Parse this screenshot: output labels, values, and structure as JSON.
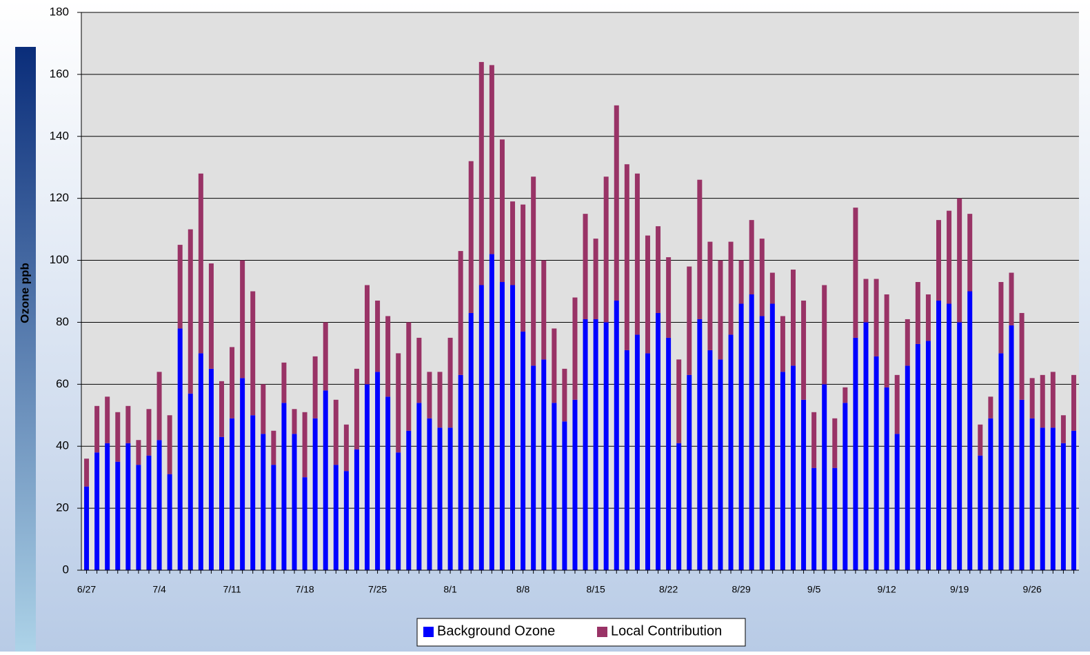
{
  "chart_data": {
    "type": "stacked-bar",
    "y_label": "Ozone ppb",
    "categories": [
      "6/27",
      null,
      null,
      null,
      null,
      null,
      null,
      "7/4",
      null,
      null,
      null,
      null,
      null,
      null,
      "7/11",
      null,
      null,
      null,
      null,
      null,
      null,
      "7/18",
      null,
      null,
      null,
      null,
      null,
      null,
      "7/25",
      null,
      null,
      null,
      null,
      null,
      null,
      "8/1",
      null,
      null,
      null,
      null,
      null,
      null,
      "8/8",
      null,
      null,
      null,
      null,
      null,
      null,
      "8/15",
      null,
      null,
      null,
      null,
      null,
      null,
      "8/22",
      null,
      null,
      null,
      null,
      null,
      null,
      "8/29",
      null,
      null,
      null,
      null,
      null,
      null,
      "9/5",
      null,
      null,
      null,
      null,
      null,
      null,
      "9/12",
      null,
      null,
      null,
      null,
      null,
      null,
      "9/19",
      null,
      null,
      null,
      null,
      null,
      null,
      "9/26",
      null,
      null,
      null,
      null
    ],
    "series": [
      {
        "name": "Background Ozone",
        "color": "#0000ff",
        "values": [
          27,
          38,
          41,
          35,
          41,
          34,
          37,
          42,
          31,
          78,
          57,
          70,
          65,
          43,
          49,
          62,
          50,
          44,
          34,
          54,
          44,
          30,
          49,
          58,
          34,
          32,
          39,
          60,
          64,
          56,
          38,
          45,
          54,
          49,
          46,
          46,
          63,
          83,
          92,
          102,
          93,
          92,
          77,
          66,
          68,
          54,
          48,
          55,
          81,
          81,
          80,
          87,
          71,
          76,
          70,
          83,
          75,
          41,
          63,
          81,
          71,
          68,
          76,
          86,
          89,
          82,
          86,
          64,
          66,
          55,
          33,
          60,
          33,
          54,
          75,
          80,
          69,
          59,
          44,
          66,
          73,
          74,
          87,
          86,
          80,
          90,
          37,
          49,
          70,
          79,
          55,
          49,
          46,
          46,
          41,
          45
        ]
      },
      {
        "name": "Local Contribution",
        "color": "#993366",
        "values": [
          9,
          15,
          15,
          16,
          12,
          8,
          15,
          22,
          19,
          27,
          53,
          58,
          34,
          18,
          23,
          38,
          40,
          16,
          11,
          13,
          8,
          21,
          20,
          22,
          21,
          15,
          26,
          32,
          23,
          26,
          32,
          35,
          21,
          15,
          18,
          29,
          40,
          49,
          72,
          61,
          46,
          27,
          41,
          61,
          32,
          24,
          17,
          33,
          34,
          26,
          47,
          63,
          60,
          52,
          38,
          28,
          26,
          27,
          35,
          45,
          35,
          32,
          30,
          14,
          24,
          25,
          10,
          18,
          31,
          32,
          18,
          32,
          16,
          5,
          42,
          14,
          25,
          30,
          19,
          15,
          20,
          15,
          26,
          30,
          40,
          25,
          10,
          7,
          23,
          17,
          28,
          13,
          17,
          18,
          9,
          18
        ]
      }
    ],
    "ylim": [
      0,
      180
    ],
    "yticks": [
      0,
      20,
      40,
      60,
      80,
      100,
      120,
      140,
      160,
      180
    ],
    "grid": true,
    "legend": "bottom"
  }
}
